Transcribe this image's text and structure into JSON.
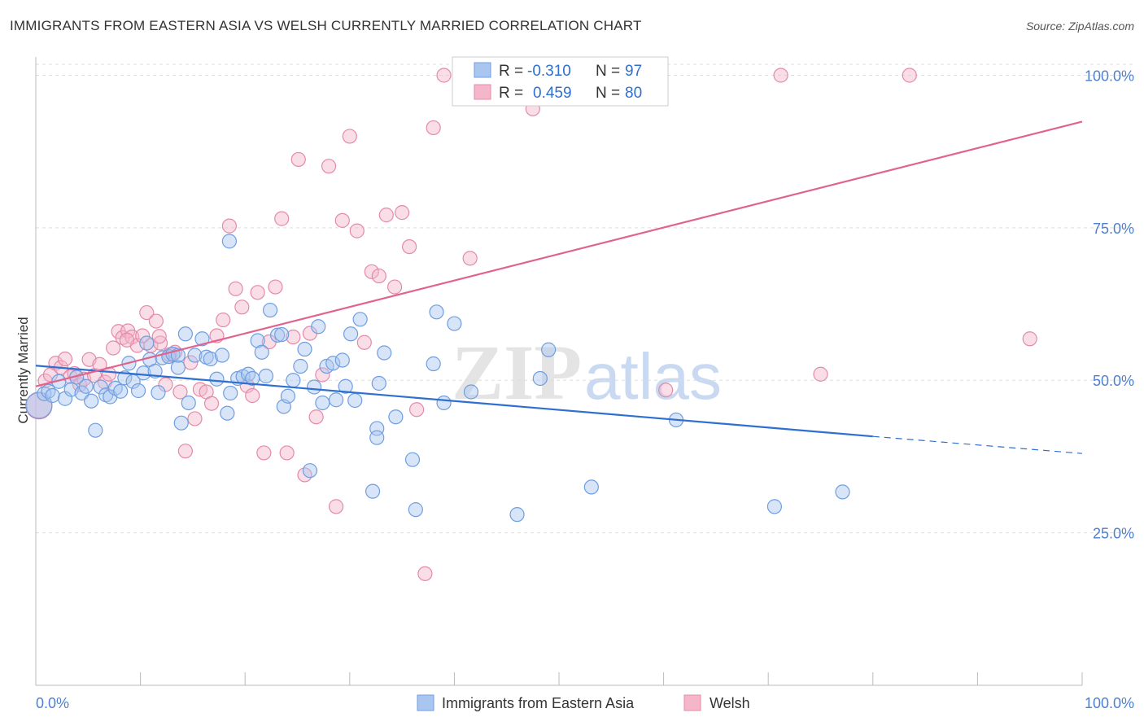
{
  "title": "IMMIGRANTS FROM EASTERN ASIA VS WELSH CURRENTLY MARRIED CORRELATION CHART",
  "source": "Source: ZipAtlas.com",
  "watermark": {
    "zip": "ZIP",
    "atlas": "atlas"
  },
  "colors": {
    "blue": "#2f6fd0",
    "blue_fill": "#a9c6f0",
    "pink": "#e0638e",
    "pink_fill": "#f5b6ca",
    "tick_text": "#4f7fcf",
    "grid": "#dddddd"
  },
  "legend": {
    "rows": [
      {
        "r_label": "R =",
        "r_value": "-0.310",
        "n_label": "N =",
        "n_value": "97"
      },
      {
        "r_label": "R =",
        "r_value": "0.459",
        "n_label": "N =",
        "n_value": "80"
      }
    ]
  },
  "bottom_legend": [
    "Immigrants from Eastern Asia",
    "Welsh"
  ],
  "chart_data": {
    "type": "scatter",
    "title": "IMMIGRANTS FROM EASTERN ASIA VS WELSH CURRENTLY MARRIED CORRELATION CHART",
    "xlabel": "",
    "ylabel": "Currently Married",
    "xlim": [
      0,
      100
    ],
    "ylim": [
      0,
      103
    ],
    "x_tick_labels": [
      "0.0%",
      "100.0%"
    ],
    "y_ticks": [
      25,
      50,
      75,
      100
    ],
    "y_tick_labels": [
      "25.0%",
      "50.0%",
      "75.0%",
      "100.0%"
    ],
    "grid": true,
    "legend_position": "top-center",
    "series": [
      {
        "name": "Immigrants from Eastern Asia",
        "color": "#2f6fd0",
        "R": -0.31,
        "N": 97,
        "trend": {
          "x_start": 0,
          "y_start": 52.4,
          "x_solid_end": 80,
          "y_solid_end": 40.8,
          "x_end": 100,
          "y_end": 38.0
        },
        "points": [
          [
            0.3,
            45.9
          ],
          [
            0.8,
            47.8
          ],
          [
            1.2,
            48.2
          ],
          [
            1.6,
            47.5
          ],
          [
            2.2,
            49.8
          ],
          [
            2.8,
            47.0
          ],
          [
            3.4,
            48.5
          ],
          [
            3.9,
            50.5
          ],
          [
            4.4,
            47.9
          ],
          [
            4.8,
            49.0
          ],
          [
            5.3,
            46.6
          ],
          [
            5.7,
            41.8
          ],
          [
            6.2,
            48.9
          ],
          [
            6.7,
            47.6
          ],
          [
            7.1,
            47.3
          ],
          [
            7.6,
            48.7
          ],
          [
            8.1,
            48.2
          ],
          [
            8.5,
            50.4
          ],
          [
            8.9,
            52.8
          ],
          [
            9.3,
            49.8
          ],
          [
            9.8,
            48.3
          ],
          [
            10.3,
            51.2
          ],
          [
            10.6,
            56.1
          ],
          [
            10.9,
            53.4
          ],
          [
            11.4,
            51.5
          ],
          [
            11.7,
            48.0
          ],
          [
            12.1,
            53.7
          ],
          [
            12.7,
            53.9
          ],
          [
            13.1,
            54.3
          ],
          [
            13.6,
            52.1
          ],
          [
            13.9,
            43.0
          ],
          [
            14.3,
            57.6
          ],
          [
            14.6,
            46.3
          ],
          [
            15.2,
            54.1
          ],
          [
            15.9,
            56.8
          ],
          [
            16.3,
            53.8
          ],
          [
            16.7,
            53.5
          ],
          [
            17.3,
            50.2
          ],
          [
            17.8,
            54.1
          ],
          [
            18.3,
            44.6
          ],
          [
            18.6,
            47.9
          ],
          [
            19.3,
            50.3
          ],
          [
            19.8,
            50.6
          ],
          [
            20.3,
            51.0
          ],
          [
            20.7,
            50.3
          ],
          [
            21.2,
            56.5
          ],
          [
            21.6,
            54.6
          ],
          [
            22.0,
            50.7
          ],
          [
            22.4,
            61.5
          ],
          [
            23.1,
            57.4
          ],
          [
            23.7,
            45.7
          ],
          [
            24.1,
            47.4
          ],
          [
            24.6,
            50.0
          ],
          [
            25.3,
            52.3
          ],
          [
            25.7,
            55.1
          ],
          [
            26.2,
            35.2
          ],
          [
            26.6,
            48.9
          ],
          [
            27.0,
            58.8
          ],
          [
            27.4,
            46.3
          ],
          [
            27.8,
            52.3
          ],
          [
            28.4,
            52.8
          ],
          [
            28.7,
            46.8
          ],
          [
            29.3,
            53.3
          ],
          [
            29.6,
            49.0
          ],
          [
            30.1,
            57.6
          ],
          [
            30.5,
            46.7
          ],
          [
            31.0,
            60.0
          ],
          [
            32.2,
            31.8
          ],
          [
            32.6,
            42.1
          ],
          [
            32.6,
            40.6
          ],
          [
            32.8,
            49.5
          ],
          [
            33.3,
            54.5
          ],
          [
            34.4,
            44.0
          ],
          [
            36.0,
            37.0
          ],
          [
            36.3,
            28.8
          ],
          [
            38.0,
            52.7
          ],
          [
            38.3,
            61.2
          ],
          [
            39.0,
            46.3
          ],
          [
            40.0,
            59.3
          ],
          [
            41.6,
            48.1
          ],
          [
            46.0,
            28.0
          ],
          [
            48.2,
            50.3
          ],
          [
            49.0,
            55.0
          ],
          [
            53.1,
            32.5
          ],
          [
            61.2,
            43.5
          ],
          [
            70.6,
            29.3
          ],
          [
            77.1,
            31.7
          ],
          [
            18.5,
            72.8
          ],
          [
            23.5,
            57.5
          ],
          [
            13.6,
            54.1
          ]
        ]
      },
      {
        "name": "Welsh",
        "color": "#e0638e",
        "R": 0.459,
        "N": 80,
        "trend": {
          "x_start": 0,
          "y_start": 49.0,
          "x_end": 100,
          "y_end": 92.4
        },
        "points": [
          [
            0.3,
            45.8
          ],
          [
            0.9,
            49.9
          ],
          [
            1.4,
            50.9
          ],
          [
            1.9,
            52.8
          ],
          [
            2.4,
            52.1
          ],
          [
            2.8,
            53.5
          ],
          [
            3.3,
            50.6
          ],
          [
            3.7,
            51.1
          ],
          [
            4.2,
            49.3
          ],
          [
            4.6,
            50.2
          ],
          [
            5.1,
            53.4
          ],
          [
            5.6,
            50.8
          ],
          [
            6.1,
            52.6
          ],
          [
            6.6,
            49.7
          ],
          [
            7.0,
            51.0
          ],
          [
            7.4,
            55.3
          ],
          [
            7.9,
            58.0
          ],
          [
            8.3,
            57.0
          ],
          [
            8.8,
            58.1
          ],
          [
            9.2,
            57.1
          ],
          [
            9.7,
            55.7
          ],
          [
            10.2,
            57.3
          ],
          [
            10.6,
            61.1
          ],
          [
            11.0,
            55.7
          ],
          [
            11.5,
            59.7
          ],
          [
            11.9,
            56.1
          ],
          [
            12.4,
            49.3
          ],
          [
            12.8,
            54.2
          ],
          [
            13.3,
            54.6
          ],
          [
            13.8,
            48.1
          ],
          [
            14.3,
            38.4
          ],
          [
            14.8,
            52.9
          ],
          [
            15.2,
            43.7
          ],
          [
            15.7,
            48.5
          ],
          [
            16.3,
            48.1
          ],
          [
            16.8,
            46.2
          ],
          [
            17.3,
            57.3
          ],
          [
            17.9,
            59.9
          ],
          [
            18.5,
            75.3
          ],
          [
            19.1,
            65.0
          ],
          [
            19.7,
            62.0
          ],
          [
            20.2,
            49.1
          ],
          [
            20.7,
            47.5
          ],
          [
            21.2,
            64.4
          ],
          [
            21.8,
            38.1
          ],
          [
            22.3,
            56.3
          ],
          [
            22.9,
            65.3
          ],
          [
            23.5,
            76.5
          ],
          [
            24.0,
            38.1
          ],
          [
            24.6,
            57.1
          ],
          [
            25.1,
            86.2
          ],
          [
            25.7,
            34.5
          ],
          [
            26.2,
            57.7
          ],
          [
            26.8,
            44.0
          ],
          [
            27.4,
            50.9
          ],
          [
            28.0,
            85.1
          ],
          [
            28.7,
            29.3
          ],
          [
            29.3,
            76.2
          ],
          [
            30.0,
            90.0
          ],
          [
            30.7,
            74.5
          ],
          [
            31.4,
            56.2
          ],
          [
            32.1,
            67.8
          ],
          [
            32.8,
            67.1
          ],
          [
            33.5,
            77.1
          ],
          [
            34.3,
            65.3
          ],
          [
            35.0,
            77.5
          ],
          [
            35.7,
            71.9
          ],
          [
            36.4,
            45.2
          ],
          [
            37.2,
            18.3
          ],
          [
            38.0,
            91.4
          ],
          [
            39.0,
            100.0
          ],
          [
            41.5,
            70.0
          ],
          [
            47.5,
            94.5
          ],
          [
            60.2,
            48.4
          ],
          [
            71.2,
            100.0
          ],
          [
            75.0,
            51.0
          ],
          [
            83.5,
            100.0
          ],
          [
            95.0,
            56.8
          ],
          [
            11.8,
            57.2
          ],
          [
            8.7,
            56.6
          ]
        ]
      }
    ]
  }
}
